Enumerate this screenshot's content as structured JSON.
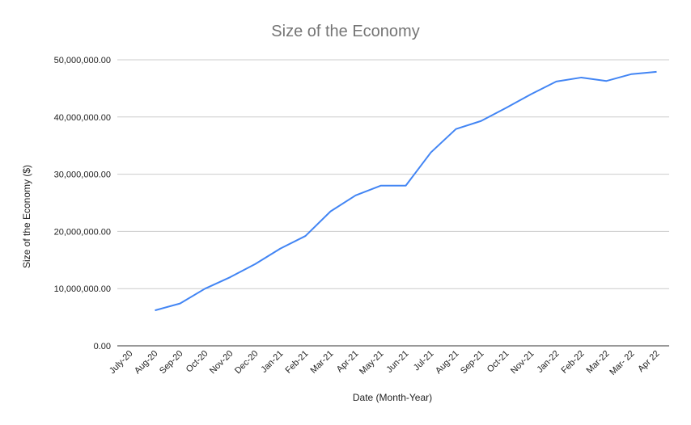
{
  "chart_data": {
    "type": "line",
    "title": "Size of the Economy",
    "xlabel": "Date (Month-Year)",
    "ylabel": "Size of the Economy ($)",
    "ylim": [
      0,
      50000000
    ],
    "yticks": [
      "0.00",
      "10,000,000.00",
      "20,000,000.00",
      "30,000,000.00",
      "40,000,000.00",
      "50,000,000.00"
    ],
    "grid": true,
    "legend": "none",
    "categories": [
      "July-20",
      "Aug-20",
      "Sep-20",
      "Oct-20",
      "Nov-20",
      "Dec-20",
      "Jan-21",
      "Feb-21",
      "Mar-21",
      "Apr-21",
      "May-21",
      "Jun-21",
      "Jul-21",
      "Aug-21",
      "Sep-21",
      "Oct-21",
      "Nov-21",
      "Jan-22",
      "Feb-22",
      "Mar-22",
      "Mar- 22",
      "Apr 22"
    ],
    "series": [
      {
        "color": "#4285f4",
        "values": [
          null,
          6200000,
          7400000,
          10000000,
          12000000,
          14300000,
          17000000,
          19200000,
          23500000,
          26300000,
          28000000,
          28000000,
          33800000,
          37900000,
          39300000,
          41600000,
          44000000,
          46200000,
          46900000,
          46300000,
          47500000,
          47900000
        ]
      }
    ]
  }
}
